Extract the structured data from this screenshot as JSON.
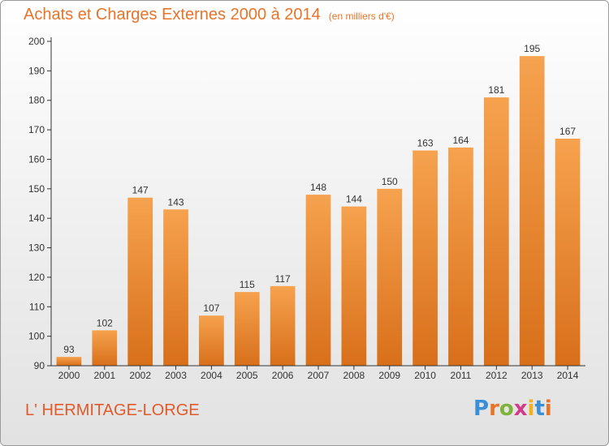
{
  "header": {
    "title": "Achats et Charges Externes 2000 à 2014",
    "subtitle": "(en milliers d'€)"
  },
  "footer": {
    "commune": "L' HERMITAGE-LORGE",
    "logo_letters": [
      "P",
      "r",
      "o",
      "x",
      "i",
      "t",
      "i"
    ],
    "logo_colors": [
      "#3a8fd6",
      "#e8742a",
      "#7fb23a",
      "#d23a8a",
      "#f0b020",
      "#3a8fd6",
      "#e8742a"
    ]
  },
  "chart_data": {
    "type": "bar",
    "categories": [
      "2000",
      "2001",
      "2002",
      "2003",
      "2004",
      "2005",
      "2006",
      "2007",
      "2008",
      "2009",
      "2010",
      "2011",
      "2012",
      "2013",
      "2014"
    ],
    "values": [
      93,
      102,
      147,
      143,
      107,
      115,
      117,
      148,
      144,
      150,
      163,
      164,
      181,
      195,
      167
    ],
    "ylim": [
      90,
      200
    ],
    "yticks": [
      90,
      100,
      110,
      120,
      130,
      140,
      150,
      160,
      170,
      180,
      190,
      200
    ],
    "grid": false,
    "bar_color_top": "#f6a24e",
    "bar_color_bottom": "#d86f1a"
  }
}
